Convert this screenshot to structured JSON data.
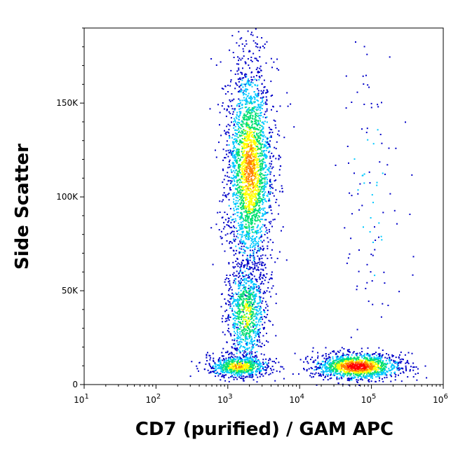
{
  "chart_data": {
    "type": "scatter",
    "subtype": "flow-cytometry density dot plot",
    "xlabel": "CD7 (purified) / GAM APC",
    "ylabel": "Side Scatter",
    "x_scale": "log",
    "xlim": [
      10,
      1000000
    ],
    "ylim": [
      0,
      190000
    ],
    "x_ticks": [
      {
        "value": 10,
        "base": "10",
        "exp": "1"
      },
      {
        "value": 100,
        "base": "10",
        "exp": "2"
      },
      {
        "value": 1000,
        "base": "10",
        "exp": "3"
      },
      {
        "value": 10000,
        "base": "10",
        "exp": "4"
      },
      {
        "value": 100000,
        "base": "10",
        "exp": "5"
      },
      {
        "value": 1000000,
        "base": "10",
        "exp": "6"
      }
    ],
    "y_ticks": [
      {
        "value": 0,
        "label": "0"
      },
      {
        "value": 50000,
        "label": "50K"
      },
      {
        "value": 100000,
        "label": "100K"
      },
      {
        "value": 150000,
        "label": "150K"
      }
    ],
    "color_scale": [
      "#0000c8",
      "#00c8ff",
      "#00e070",
      "#ffff00",
      "#ff8000",
      "#ff0000"
    ],
    "populations": [
      {
        "x_log_center": 3.3,
        "x_log_sd": 0.16,
        "y_center": 115000,
        "y_sd": 28000,
        "count": 2600,
        "peak_density": 0.75
      },
      {
        "x_log_center": 3.25,
        "x_log_sd": 0.14,
        "y_center": 38000,
        "y_sd": 14000,
        "count": 900,
        "peak_density": 0.55
      },
      {
        "x_log_center": 3.15,
        "x_log_sd": 0.22,
        "y_center": 10000,
        "y_sd": 3000,
        "count": 700,
        "peak_density": 0.7
      },
      {
        "x_log_center": 4.8,
        "x_log_sd": 0.3,
        "y_center": 10000,
        "y_sd": 3500,
        "count": 1400,
        "peak_density": 1.0
      },
      {
        "x_log_center": 5.0,
        "x_log_sd": 0.22,
        "y_center": 100000,
        "y_sd": 45000,
        "count": 110,
        "peak_density": 0.15
      }
    ]
  }
}
